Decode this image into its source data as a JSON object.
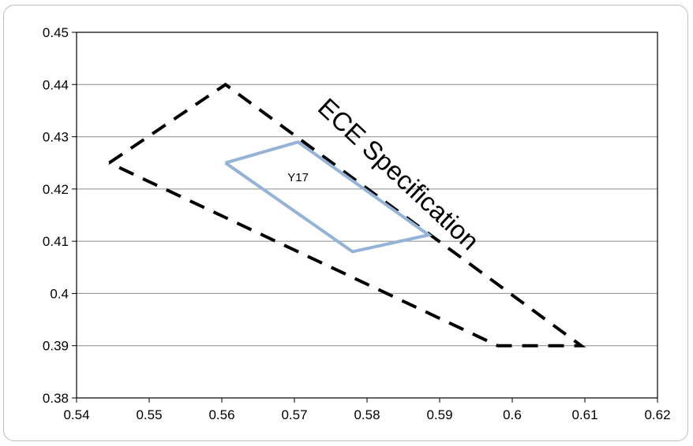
{
  "chart_data": {
    "type": "scatter",
    "title": "",
    "xlabel": "",
    "ylabel": "",
    "xlim": [
      0.54,
      0.62
    ],
    "ylim": [
      0.38,
      0.45
    ],
    "x_ticks": [
      "0.54",
      "0.55",
      "0.56",
      "0.57",
      "0.58",
      "0.59",
      "0.6",
      "0.61",
      "0.62"
    ],
    "y_ticks": [
      "0.38",
      "0.39",
      "0.4",
      "0.41",
      "0.42",
      "0.43",
      "0.44",
      "0.45"
    ],
    "grid": "horizontal",
    "legend": "none",
    "series": [
      {
        "name": "ECE Specification",
        "line_style": "dashed",
        "color": "#000000",
        "x": [
          0.5445,
          0.5605,
          0.6095,
          0.598,
          0.5445
        ],
        "y": [
          0.425,
          0.44,
          0.39,
          0.39,
          0.425
        ]
      },
      {
        "name": "Y17",
        "line_style": "solid",
        "color": "#95b3d7",
        "x": [
          0.5605,
          0.5705,
          0.5885,
          0.578,
          0.5605
        ],
        "y": [
          0.425,
          0.429,
          0.4112,
          0.408,
          0.425
        ]
      }
    ],
    "annotations": [
      {
        "text": "ECE Specification",
        "x": 0.573,
        "y": 0.4352,
        "angle": 43,
        "size": "large"
      },
      {
        "text": "Y17",
        "x": 0.5705,
        "y": 0.4215,
        "angle": 0,
        "size": "small"
      }
    ]
  }
}
